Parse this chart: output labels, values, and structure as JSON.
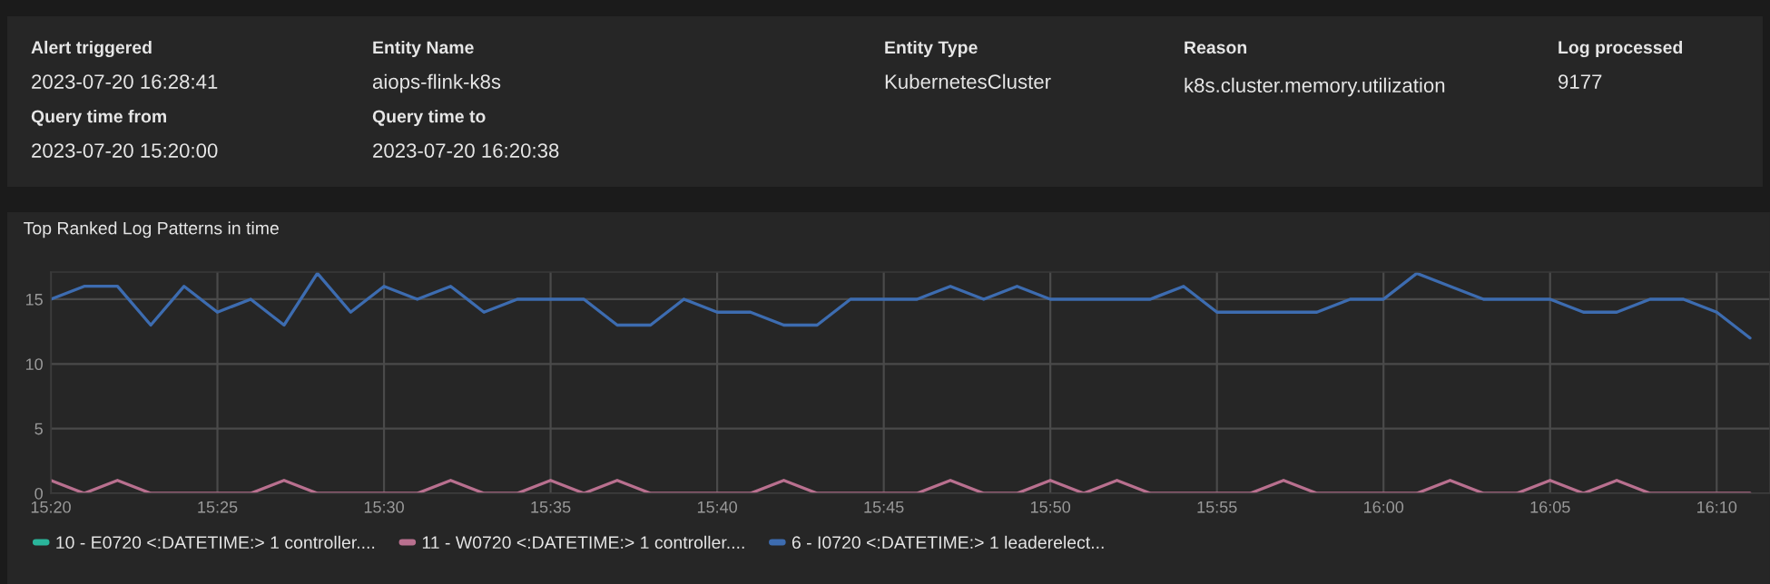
{
  "chart_data": [
    {
      "type": "other",
      "annotations": [
        "Alert triggered",
        "2023-07-20 16:28:41",
        "Entity Name",
        "aiops-flink-k8s",
        "Entity Type",
        "KubernetesCluster",
        "Reason",
        "k8s.cluster.memory.utilization",
        "Log processed",
        "9177",
        "Query time from",
        "2023-07-20 15:20:00",
        "Query time to",
        "2023-07-20 16:20:38"
      ]
    },
    {
      "type": "line",
      "title": "Top Ranked Log Patterns in time",
      "x": [
        "2023-07-20T15:20",
        "2023-07-20T15:21",
        "2023-07-20T15:22",
        "2023-07-20T15:23",
        "2023-07-20T15:24",
        "2023-07-20T15:25",
        "2023-07-20T15:26",
        "2023-07-20T15:27",
        "2023-07-20T15:28",
        "2023-07-20T15:29",
        "2023-07-20T15:30",
        "2023-07-20T15:31",
        "2023-07-20T15:32",
        "2023-07-20T15:33",
        "2023-07-20T15:34",
        "2023-07-20T15:35",
        "2023-07-20T15:36",
        "2023-07-20T15:37",
        "2023-07-20T15:38",
        "2023-07-20T15:39",
        "2023-07-20T15:40",
        "2023-07-20T15:41",
        "2023-07-20T15:42",
        "2023-07-20T15:43",
        "2023-07-20T15:44",
        "2023-07-20T15:45",
        "2023-07-20T15:46",
        "2023-07-20T15:47",
        "2023-07-20T15:48",
        "2023-07-20T15:49",
        "2023-07-20T15:50",
        "2023-07-20T15:51",
        "2023-07-20T15:52",
        "2023-07-20T15:53",
        "2023-07-20T15:54",
        "2023-07-20T15:55",
        "2023-07-20T15:56",
        "2023-07-20T15:57",
        "2023-07-20T15:58",
        "2023-07-20T15:59",
        "2023-07-20T16:00",
        "2023-07-20T16:01",
        "2023-07-20T16:02",
        "2023-07-20T16:03",
        "2023-07-20T16:04",
        "2023-07-20T16:05",
        "2023-07-20T16:06",
        "2023-07-20T16:07",
        "2023-07-20T16:08",
        "2023-07-20T16:09",
        "2023-07-20T16:10",
        "2023-07-20T16:11"
      ],
      "series": [
        {
          "name": "10 - E0720 <:DATETIME:> 1 controller....",
          "color": "#2ab59b",
          "values": [
            null,
            null,
            null,
            null,
            null,
            null,
            null,
            null,
            null,
            null,
            null,
            null,
            null,
            null,
            null,
            null,
            null,
            null,
            null,
            null,
            null,
            null,
            null,
            null,
            null,
            null,
            null,
            null,
            null,
            null,
            null,
            null,
            null,
            null,
            null,
            null,
            null,
            null,
            null,
            null,
            null,
            null,
            null,
            null,
            null,
            null,
            null,
            null,
            null,
            null,
            null,
            null
          ]
        },
        {
          "name": "11 - W0720 <:DATETIME:> 1 controller....",
          "color": "#b9708f",
          "values": [
            1,
            0,
            1,
            0,
            0,
            0,
            0,
            1,
            0,
            0,
            0,
            0,
            1,
            0,
            0,
            1,
            0,
            1,
            0,
            0,
            0,
            0,
            1,
            0,
            0,
            0,
            0,
            1,
            0,
            0,
            1,
            0,
            1,
            0,
            0,
            0,
            0,
            1,
            0,
            0,
            0,
            0,
            1,
            0,
            0,
            1,
            0,
            1,
            0,
            0,
            0,
            0
          ]
        },
        {
          "name": "6 - I0720 <:DATETIME:> 1 leaderelect...",
          "color": "#3d6cb0",
          "values": [
            15,
            16,
            16,
            13,
            16,
            14,
            15,
            13,
            17,
            14,
            16,
            15,
            16,
            14,
            15,
            15,
            15,
            13,
            13,
            15,
            14,
            14,
            13,
            13,
            15,
            15,
            15,
            16,
            15,
            16,
            15,
            15,
            15,
            15,
            16,
            14,
            14,
            14,
            14,
            15,
            15,
            17,
            16,
            15,
            15,
            15,
            14,
            14,
            15,
            15,
            14,
            12
          ]
        }
      ],
      "xlim": [
        "2023-07-20T15:20",
        "2023-07-20T16:11:36"
      ],
      "xticks": [
        {
          "value": "2023-07-20T15:20",
          "label": "15:20"
        },
        {
          "value": "2023-07-20T15:25",
          "label": "15:25"
        },
        {
          "value": "2023-07-20T15:30",
          "label": "15:30"
        },
        {
          "value": "2023-07-20T15:35",
          "label": "15:35"
        },
        {
          "value": "2023-07-20T15:40",
          "label": "15:40"
        },
        {
          "value": "2023-07-20T15:45",
          "label": "15:45"
        },
        {
          "value": "2023-07-20T15:50",
          "label": "15:50"
        },
        {
          "value": "2023-07-20T15:55",
          "label": "15:55"
        },
        {
          "value": "2023-07-20T16:00",
          "label": "16:00"
        },
        {
          "value": "2023-07-20T16:05",
          "label": "16:05"
        },
        {
          "value": "2023-07-20T16:10",
          "label": "16:10"
        }
      ],
      "ylim": [
        0,
        17.1
      ],
      "yticks": [
        0,
        5,
        10,
        15
      ],
      "grid": true,
      "legend": "bottom",
      "marker": "none",
      "line_style": "solid"
    }
  ]
}
